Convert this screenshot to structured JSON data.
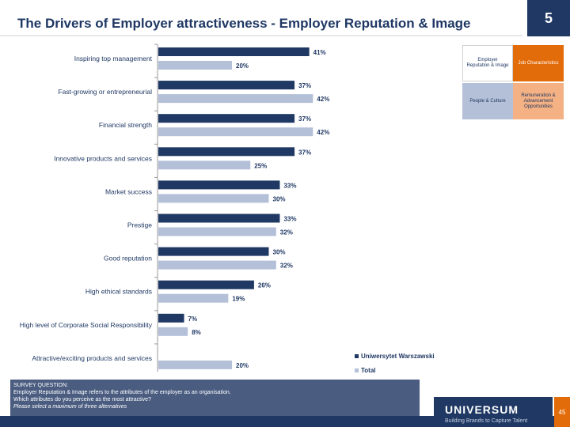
{
  "header": {
    "title": "The Drivers of Employer attractiveness - Employer Reputation & Image",
    "page_section": "5"
  },
  "quadrant": {
    "items": [
      {
        "label": "Employer Reputation & Image",
        "color": "#ffffff",
        "text_color": "#1f3864"
      },
      {
        "label": "Job Characteristics",
        "color": "#e36c0a",
        "text_color": "#ffffff"
      },
      {
        "label": "People & Culture",
        "color": "#b4c0d8",
        "text_color": "#1f3864"
      },
      {
        "label": "Remuneration & Advancement Opportunities",
        "color": "#f4b183",
        "text_color": "#1f3864"
      }
    ]
  },
  "chart_data": {
    "type": "bar",
    "orientation": "horizontal",
    "categories": [
      "Inspiring top management",
      "Fast-growing or entrepreneurial",
      "Financial strength",
      "Innovative products and services",
      "Market success",
      "Prestige",
      "Good reputation",
      "High ethical standards",
      "High level of Corporate Social Responsibility",
      "Attractive/exciting products and services"
    ],
    "series": [
      {
        "name": "Uniwersytet Warszawski",
        "color": "#1f3864",
        "values": [
          41,
          37,
          37,
          37,
          33,
          33,
          30,
          26,
          7,
          null
        ]
      },
      {
        "name": "Total",
        "color": "#b4c0d8",
        "values": [
          20,
          42,
          42,
          25,
          30,
          32,
          32,
          19,
          8,
          20
        ]
      }
    ],
    "legend": "bottom-right",
    "grid": false
  },
  "survey": {
    "heading": "SURVEY QUESTION:",
    "line1": "Employer Reputation & Image refers to the attributes of the employer as an organisation.",
    "line2": "Which attributes do you perceive as the most attractive?",
    "line3": "Please select a maximum of three alternatives"
  },
  "footer": {
    "brand": "UNIVERSUM",
    "tagline": "Building Brands to Capture Talent",
    "page_number": "45"
  }
}
